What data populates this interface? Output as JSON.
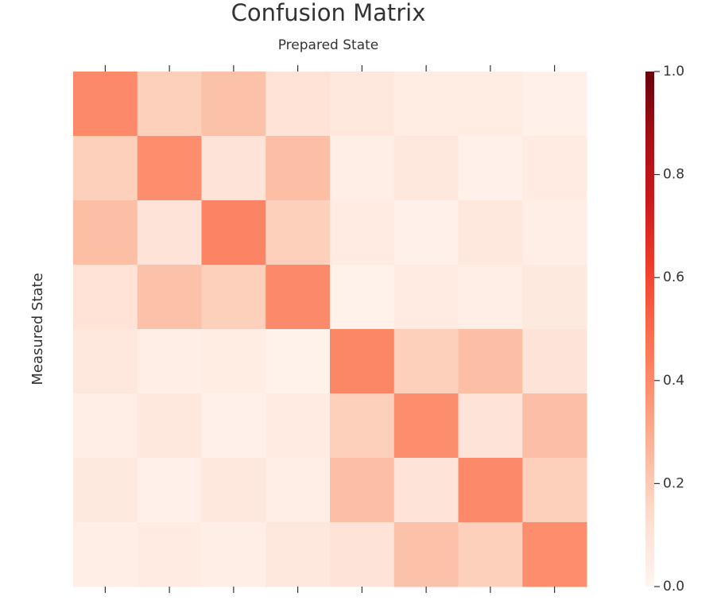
{
  "chart_data": {
    "type": "heatmap",
    "title": "Confusion Matrix",
    "x_label": "Prepared State",
    "y_label": "Measured State",
    "x_categories": [
      null,
      null,
      null,
      null,
      null,
      null,
      null,
      null
    ],
    "y_categories": [
      null,
      null,
      null,
      null,
      null,
      null,
      null,
      null
    ],
    "values": [
      [
        0.4,
        0.18,
        0.23,
        0.11,
        0.08,
        0.05,
        0.05,
        0.03
      ],
      [
        0.18,
        0.39,
        0.1,
        0.24,
        0.04,
        0.08,
        0.03,
        0.06
      ],
      [
        0.24,
        0.1,
        0.42,
        0.18,
        0.06,
        0.03,
        0.08,
        0.04
      ],
      [
        0.11,
        0.23,
        0.18,
        0.4,
        0.02,
        0.06,
        0.04,
        0.07
      ],
      [
        0.08,
        0.04,
        0.05,
        0.02,
        0.41,
        0.18,
        0.24,
        0.1
      ],
      [
        0.04,
        0.08,
        0.03,
        0.06,
        0.18,
        0.39,
        0.1,
        0.24
      ],
      [
        0.07,
        0.03,
        0.08,
        0.04,
        0.24,
        0.1,
        0.4,
        0.18
      ],
      [
        0.04,
        0.06,
        0.04,
        0.08,
        0.1,
        0.23,
        0.18,
        0.39
      ]
    ],
    "colormap": [
      "#fff5f0",
      "#fee0d2",
      "#fcbba1",
      "#fc9272",
      "#fb6a4a",
      "#ef3b2c",
      "#cb181d",
      "#a50f15",
      "#67000d"
    ],
    "clim": [
      0,
      1
    ],
    "cticks": [
      {
        "value": 0,
        "label": "0.0"
      },
      {
        "value": 0.2,
        "label": "0.2"
      },
      {
        "value": 0.4,
        "label": "0.4"
      },
      {
        "value": 0.6,
        "label": "0.6"
      },
      {
        "value": 0.8,
        "label": "0.8"
      },
      {
        "value": 1,
        "label": "1.0"
      }
    ]
  }
}
